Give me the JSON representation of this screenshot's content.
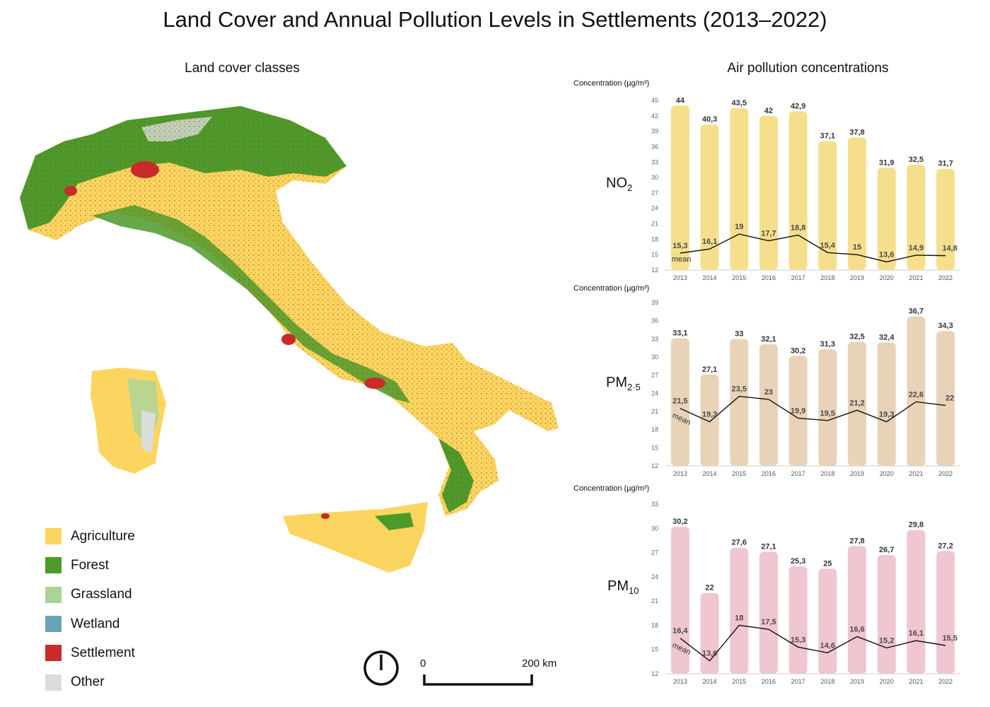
{
  "title": "Land Cover and Annual Pollution Levels in Settlements (2013–2022)",
  "map_title": "Land cover classes",
  "charts_title": "Air pollution concentrations",
  "legend": [
    {
      "label": "Agriculture",
      "color": "#fcd560"
    },
    {
      "label": "Forest",
      "color": "#4c9a2a"
    },
    {
      "label": "Grassland",
      "color": "#a8d49a"
    },
    {
      "label": "Wetland",
      "color": "#6aa3b6"
    },
    {
      "label": "Settlement",
      "color": "#c92a2a"
    },
    {
      "label": "Other",
      "color": "#dcdcdc"
    }
  ],
  "scale_bar": {
    "start": "0",
    "end": "200 km"
  },
  "chart_data": [
    {
      "type": "bar",
      "pollutant": "NO",
      "pollutant_sub": "2",
      "ylabel": "Concentration (µg/m³)",
      "ylim": [
        12,
        45
      ],
      "yticks": [
        12,
        15,
        18,
        21,
        24,
        27,
        30,
        33,
        36,
        39,
        42,
        45
      ],
      "categories": [
        "2013",
        "2014",
        "2015",
        "2016",
        "2017",
        "2018",
        "2019",
        "2020",
        "2021",
        "2022"
      ],
      "bar_color": "#f5df8c",
      "values": [
        44,
        40.3,
        43.5,
        42,
        42.9,
        37.1,
        37.8,
        31.9,
        32.5,
        31.7
      ],
      "value_labels": [
        "44",
        "40,3",
        "43,5",
        "42",
        "42,9",
        "37,1",
        "37,8",
        "31,9",
        "32,5",
        "31,7"
      ],
      "mean_label": "mean",
      "mean_values": [
        15.3,
        16.1,
        19,
        17.7,
        18.8,
        15.4,
        15,
        13.6,
        14.9,
        14.8
      ],
      "mean_labels": [
        "15,3",
        "16,1",
        "19",
        "17,7",
        "18,8",
        "15,4",
        "15",
        "13,6",
        "14,9",
        "14,8"
      ]
    },
    {
      "type": "bar",
      "pollutant": "PM",
      "pollutant_sub": "2·5",
      "ylabel": "Concentration (µg/m³)",
      "ylim": [
        12,
        39
      ],
      "yticks": [
        12,
        15,
        18,
        21,
        24,
        27,
        30,
        33,
        36,
        39
      ],
      "categories": [
        "2013",
        "2014",
        "2015",
        "2016",
        "2017",
        "2018",
        "2019",
        "2020",
        "2021",
        "2022"
      ],
      "bar_color": "#e8d3b8",
      "values": [
        33.1,
        27.1,
        33,
        32.1,
        30.2,
        31.3,
        32.5,
        32.4,
        36.7,
        34.3
      ],
      "value_labels": [
        "33,1",
        "27,1",
        "33",
        "32,1",
        "30,2",
        "31,3",
        "32,5",
        "32,4",
        "36,7",
        "34,3"
      ],
      "mean_label": "mean",
      "mean_values": [
        21.5,
        19.3,
        23.5,
        23,
        19.9,
        19.5,
        21.2,
        19.3,
        22.6,
        22
      ],
      "mean_labels": [
        "21,5",
        "19,3",
        "23,5",
        "23",
        "19,9",
        "19,5",
        "21,2",
        "19,3",
        "22,6",
        "22"
      ]
    },
    {
      "type": "bar",
      "pollutant": "PM",
      "pollutant_sub": "10",
      "ylabel": "Concentration (µg/m³)",
      "ylim": [
        12,
        33
      ],
      "yticks": [
        12,
        15,
        18,
        21,
        24,
        27,
        30,
        33
      ],
      "categories": [
        "2013",
        "2014",
        "2015",
        "2016",
        "2017",
        "2018",
        "2019",
        "2020",
        "2021",
        "2022"
      ],
      "bar_color": "#f0c6d0",
      "values": [
        30.2,
        22,
        27.6,
        27.1,
        25.3,
        25,
        27.8,
        26.7,
        29.8,
        27.2
      ],
      "value_labels": [
        "30,2",
        "22",
        "27,6",
        "27,1",
        "25,3",
        "25",
        "27,8",
        "26,7",
        "29,8",
        "27,2"
      ],
      "mean_label": "mean",
      "mean_values": [
        16.4,
        13.6,
        18,
        17.5,
        15.3,
        14.6,
        16.6,
        15.2,
        16.1,
        15.5
      ],
      "mean_labels": [
        "16,4",
        "13,6",
        "18",
        "17,5",
        "15,3",
        "14,6",
        "16,6",
        "15,2",
        "16,1",
        "15,5"
      ]
    }
  ]
}
